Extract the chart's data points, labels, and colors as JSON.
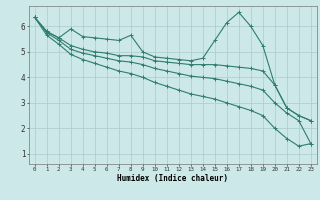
{
  "title": "",
  "xlabel": "Humidex (Indice chaleur)",
  "bg_color": "#cce8e8",
  "grid_color": "#aacccc",
  "line_color": "#2e7d6e",
  "x_ticks": [
    0,
    1,
    2,
    3,
    4,
    5,
    6,
    7,
    8,
    9,
    10,
    11,
    12,
    13,
    14,
    15,
    16,
    17,
    18,
    19,
    20,
    21,
    22,
    23
  ],
  "y_ticks": [
    1,
    2,
    3,
    4,
    5,
    6
  ],
  "ylim": [
    0.6,
    6.8
  ],
  "xlim": [
    -0.5,
    23.5
  ],
  "series1": [
    6.35,
    5.8,
    5.55,
    5.9,
    5.6,
    5.55,
    5.5,
    5.45,
    5.65,
    5.0,
    4.8,
    4.75,
    4.7,
    4.65,
    4.75,
    5.45,
    6.15,
    6.55,
    6.0,
    5.25,
    3.7,
    2.8,
    2.5,
    2.3
  ],
  "series2": [
    6.35,
    5.8,
    5.55,
    5.25,
    5.1,
    5.0,
    4.95,
    4.85,
    4.85,
    4.8,
    4.65,
    4.6,
    4.55,
    4.5,
    4.5,
    4.5,
    4.45,
    4.4,
    4.35,
    4.25,
    3.7,
    2.8,
    2.5,
    2.3
  ],
  "series3": [
    6.35,
    5.75,
    5.45,
    5.1,
    4.95,
    4.85,
    4.75,
    4.65,
    4.6,
    4.5,
    4.35,
    4.25,
    4.15,
    4.05,
    4.0,
    3.95,
    3.85,
    3.75,
    3.65,
    3.5,
    3.0,
    2.6,
    2.3,
    1.4
  ],
  "series4": [
    6.35,
    5.65,
    5.3,
    4.9,
    4.7,
    4.55,
    4.4,
    4.25,
    4.15,
    4.0,
    3.8,
    3.65,
    3.5,
    3.35,
    3.25,
    3.15,
    3.0,
    2.85,
    2.7,
    2.5,
    2.0,
    1.6,
    1.3,
    1.4
  ],
  "xlabel_fontsize": 5.5,
  "ytick_fontsize": 5.5,
  "xtick_fontsize": 4.2
}
